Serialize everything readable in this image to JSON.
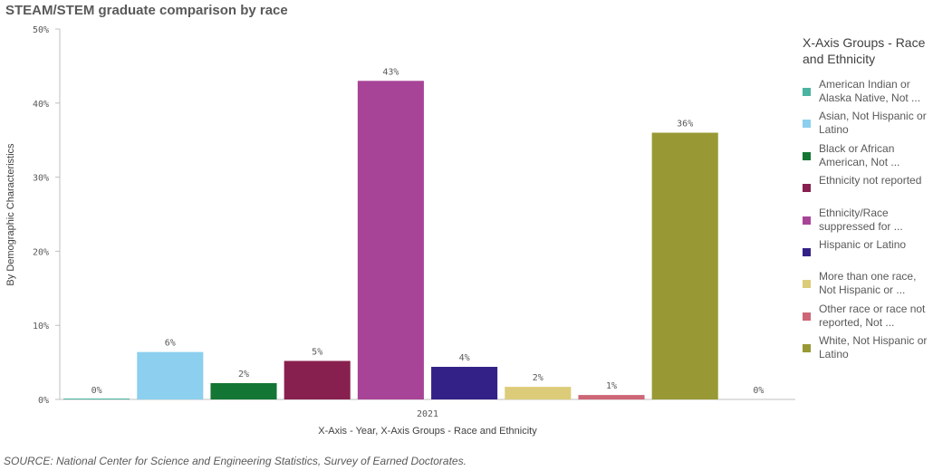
{
  "chart_data": {
    "type": "bar",
    "title": "STEAM/STEM graduate comparison by race",
    "xlabel": "X-Axis - Year, X-Axis Groups - Race and Ethnicity",
    "ylabel": "By Demographic Characteristics",
    "ylim": [
      0,
      50
    ],
    "yticks": [
      "0%",
      "10%",
      "20%",
      "30%",
      "40%",
      "50%"
    ],
    "categories": [
      "2021"
    ],
    "grid": false,
    "legend_title": "X-Axis Groups - Race and Ethnicity",
    "legend_position": "right",
    "series": [
      {
        "name": "American Indian or Alaska Native, Not ...",
        "values": [
          0
        ],
        "label": "0%",
        "color": "#4bb3a1"
      },
      {
        "name": "Asian, Not Hispanic or Latino",
        "values": [
          6.4
        ],
        "label": "6%",
        "color": "#8ccfee"
      },
      {
        "name": "Black or African American, Not ...",
        "values": [
          2.2
        ],
        "label": "2%",
        "color": "#137634"
      },
      {
        "name": "Ethnicity not reported",
        "values": [
          5.2
        ],
        "label": "5%",
        "color": "#88204f"
      },
      {
        "name": "Ethnicity/Race suppressed for ...",
        "values": [
          43
        ],
        "label": "43%",
        "color": "#a84497"
      },
      {
        "name": "Hispanic or Latino",
        "values": [
          4.4
        ],
        "label": "4%",
        "color": "#342187"
      },
      {
        "name": "More than one race, Not Hispanic or ...",
        "values": [
          1.7
        ],
        "label": "2%",
        "color": "#dccc79"
      },
      {
        "name": "Other race or race not reported, Not ...",
        "values": [
          0.6
        ],
        "label": "1%",
        "color": "#cd6677"
      },
      {
        "name": "White, Not Hispanic or Latino",
        "values": [
          36
        ],
        "label": "36%",
        "color": "#989934"
      },
      {
        "name": "",
        "values": [
          0
        ],
        "label": "0%",
        "color": "#cccccc"
      }
    ]
  },
  "source": "SOURCE: National Center for Science and Engineering Statistics, Survey of Earned Doctorates."
}
